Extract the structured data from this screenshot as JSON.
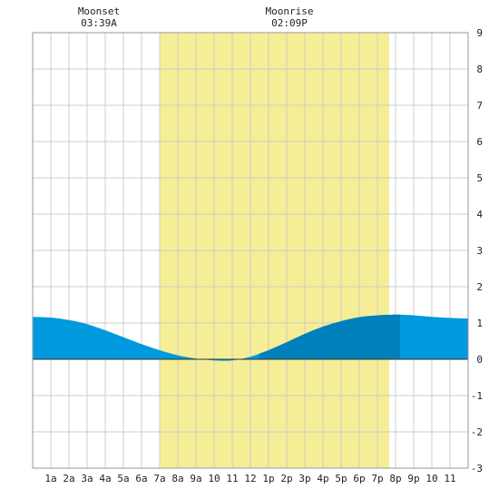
{
  "chart_data": {
    "type": "area",
    "title": "",
    "xlabel": "",
    "ylabel": "",
    "x_ticks": [
      "1a",
      "2a",
      "3a",
      "4a",
      "5a",
      "6a",
      "7a",
      "8a",
      "9a",
      "10",
      "11",
      "12",
      "1p",
      "2p",
      "3p",
      "4p",
      "5p",
      "6p",
      "7p",
      "8p",
      "9p",
      "10",
      "11"
    ],
    "x_range_hours": [
      0,
      24
    ],
    "ylim": [
      -3,
      9
    ],
    "y_ticks": [
      "-3",
      "-2",
      "-1",
      "0",
      "1",
      "2",
      "3",
      "4",
      "5",
      "6",
      "7",
      "8",
      "9"
    ],
    "grid": true,
    "daylight_hours": [
      7.0,
      19.65
    ],
    "moon_events": [
      {
        "label": "Moonset",
        "time": "03:39A",
        "hour": 3.65
      },
      {
        "label": "Moonrise",
        "time": "02:09P",
        "hour": 14.15
      }
    ],
    "series": [
      {
        "x": [
          0,
          1,
          2,
          3,
          4,
          5,
          6,
          7,
          8,
          9,
          10,
          10.5,
          11,
          12,
          13,
          14,
          15,
          16,
          17,
          18,
          19,
          20,
          20.25,
          21,
          22,
          23,
          24
        ],
        "y": [
          1.17,
          1.15,
          1.08,
          0.97,
          0.8,
          0.61,
          0.42,
          0.25,
          0.11,
          0.02,
          -0.03,
          -0.04,
          -0.03,
          0.07,
          0.25,
          0.47,
          0.7,
          0.9,
          1.05,
          1.16,
          1.21,
          1.23,
          1.23,
          1.21,
          1.17,
          1.14,
          1.12
        ]
      }
    ],
    "colors": {
      "tide": "#0099dd",
      "tide_night_dark": "#0080bb",
      "daylight": "#f5ee96",
      "grid": "#cccccc",
      "frame": "#999999",
      "zero_line": "#333333"
    }
  }
}
